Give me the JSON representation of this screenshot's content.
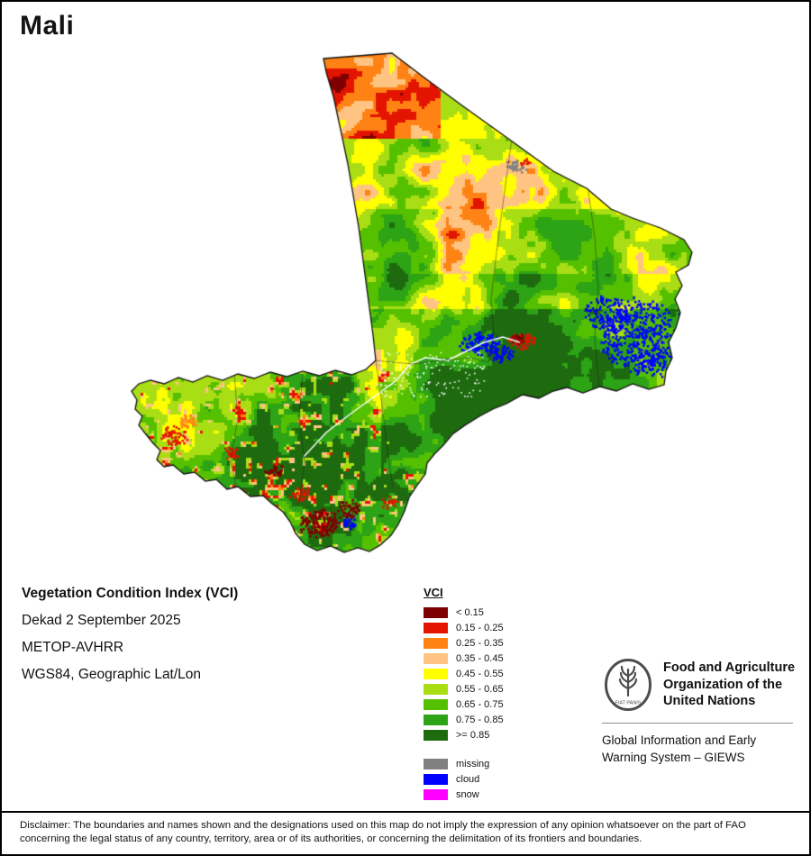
{
  "page": {
    "title": "Mali"
  },
  "info": {
    "title": "Vegetation Condition Index (VCI)",
    "dekad": "Dekad 2 September 2025",
    "sensor": "METOP-AVHRR",
    "projection": "WGS84, Geographic Lat/Lon"
  },
  "legend": {
    "title": "VCI",
    "items": [
      {
        "label": "< 0.15",
        "color": "#7f0000"
      },
      {
        "label": "0.15 - 0.25",
        "color": "#e31400"
      },
      {
        "label": "0.25 - 0.35",
        "color": "#ff8214"
      },
      {
        "label": "0.35 - 0.45",
        "color": "#ffc482"
      },
      {
        "label": "0.45 - 0.55",
        "color": "#ffff00"
      },
      {
        "label": "0.55 - 0.65",
        "color": "#aade14"
      },
      {
        "label": "0.65 - 0.75",
        "color": "#55c000"
      },
      {
        "label": "0.75 - 0.85",
        "color": "#2da316"
      },
      {
        "label": ">= 0.85",
        "color": "#1e6b0f"
      }
    ],
    "extra_items": [
      {
        "label": "missing",
        "color": "#808080"
      },
      {
        "label": "cloud",
        "color": "#0000ff"
      },
      {
        "label": "snow",
        "color": "#ff00ff"
      }
    ]
  },
  "branding": {
    "logo_motto": "FIAT PANIS",
    "org_name": "Food and Agriculture\nOrganization of the\nUnited Nations",
    "program": "Global Information and Early\nWarning System – GIEWS"
  },
  "disclaimer": "Disclaimer: The boundaries and names shown and the designations used on this map do not imply the expression of any opinion whatsoever on the part of FAO concerning the legal status of any country, territory, area or of its authorities, or concerning the delimitation of its frontiers and boundaries."
}
